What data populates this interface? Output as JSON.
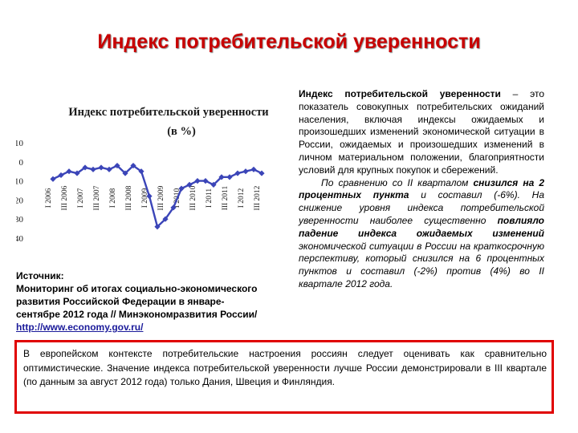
{
  "slide": {
    "title": "Индекс потребительской уверенности"
  },
  "chart_data": {
    "type": "line",
    "title": "Индекс потребительской уверенности",
    "subtitle": "(в %)",
    "ylim": [
      -40,
      10
    ],
    "yticks": [
      10,
      0,
      -10,
      -20,
      -30,
      -40
    ],
    "grid": false,
    "line_color": "#3b45b8",
    "x_labels": [
      "I 2006",
      "III 2006",
      "I 2007",
      "III 2007",
      "I 2008",
      "III 2008",
      "I 2009",
      "III 2009",
      "I 2010",
      "III 2010",
      "I 2011",
      "III 2011",
      "I 2012",
      "III 2012"
    ],
    "x": [
      "I 2006",
      "II 2006",
      "III 2006",
      "IV 2006",
      "I 2007",
      "II 2007",
      "III 2007",
      "IV 2007",
      "I 2008",
      "II 2008",
      "III 2008",
      "IV 2008",
      "I 2009",
      "II 2009",
      "III 2009",
      "IV 2009",
      "I 2010",
      "II 2010",
      "III 2010",
      "IV 2010",
      "I 2011",
      "II 2011",
      "III 2011",
      "IV 2011",
      "I 2012",
      "II 2012",
      "III 2012"
    ],
    "values": [
      -9,
      -7,
      -5,
      -6,
      -3,
      -4,
      -3,
      -4,
      -2,
      -6,
      -2,
      -5,
      -18,
      -34,
      -30,
      -24,
      -14,
      -12,
      -10,
      -10,
      -12,
      -8,
      -8,
      -6,
      -5,
      -4,
      -6
    ]
  },
  "source": {
    "label": "Источник:",
    "text": "Мониторинг об итогах социально-экономического развития Российской Федерации в январе-сентябре 2012 года // Минэкономразвития России/",
    "link": "http://www.economy.gov.ru/"
  },
  "description": {
    "term": "Индекс потребительской уверенности",
    "definition": " – это показатель совокупных потребительских ожиданий населения, включая индексы ожидаемых и произошедших изменений экономической ситуации в России, ожидаемых и произошедших изменений в личном материальном положении, благоприятности условий для крупных покупок и сбережений.",
    "p2_a": "По сравнению со II кварталом ",
    "p2_b": "снизился на 2 процентных пункта",
    "p2_c": " и составил (-6%). На снижение уровня индекса потребительской уверенности наиболее существенно ",
    "p2_d": "повлияло падение индекса ожидаемых изменений",
    "p2_e": " экономической ситуации в России на краткосрочную перспективу, который снизился на 6 процентных пунктов и составил (-2%) против (4%) во II квартале 2012 года."
  },
  "note": {
    "text": "В европейском контексте потребительские настроения россиян следует оценивать как сравнительно оптимистические. Значение индекса потребительской уверенности лучше России демонстрировали в III квартале (по данным за август 2012 года) только Дания, Швеция и Финляндия."
  }
}
